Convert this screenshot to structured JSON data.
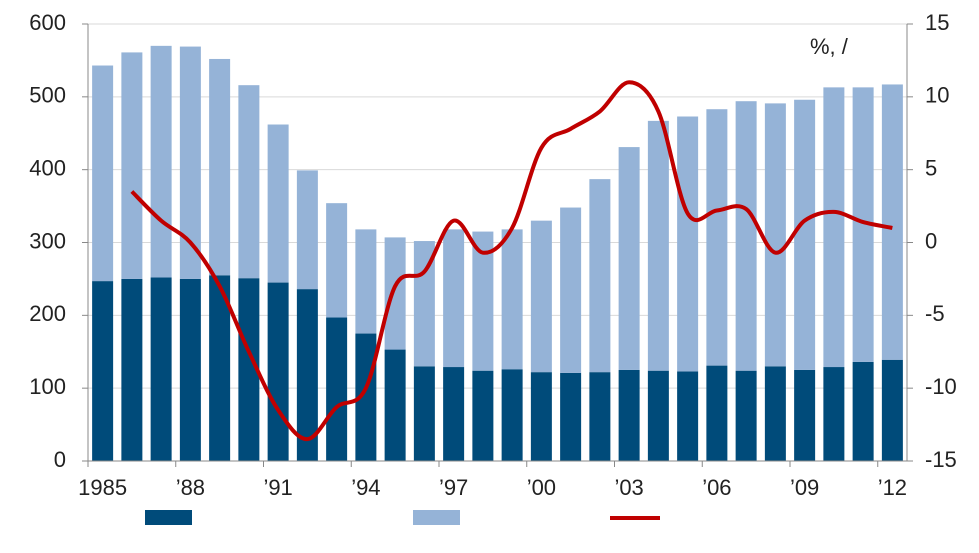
{
  "chart_data": {
    "type": "bar",
    "stacked": true,
    "annotation": "%,  /",
    "categories": [
      "1985",
      null,
      null,
      "’88",
      null,
      null,
      "’91",
      null,
      null,
      "’94",
      null,
      null,
      "’97",
      null,
      null,
      "’00",
      null,
      null,
      "’03",
      null,
      null,
      "’06",
      null,
      null,
      "’09",
      null,
      null,
      "’12"
    ],
    "series": [
      {
        "color": "#004b7a",
        "values": [
          247,
          250,
          252,
          250,
          255,
          251,
          245,
          236,
          197,
          175,
          153,
          130,
          129,
          124,
          126,
          122,
          121,
          122,
          125,
          124,
          123,
          131,
          124,
          130,
          125,
          129,
          136,
          139
        ]
      },
      {
        "color": "#95b3d7",
        "values": [
          296,
          311,
          318,
          319,
          297,
          265,
          217,
          163,
          157,
          143,
          154,
          172,
          189,
          191,
          192,
          208,
          227,
          265,
          306,
          343,
          350,
          352,
          370,
          361,
          371,
          384,
          377,
          378
        ]
      },
      {
        "type": "line",
        "axis": "y2",
        "color": "#c00000",
        "values": [
          null,
          3.5,
          1.5,
          0,
          -3,
          -7.5,
          -11.5,
          -13.5,
          -11.3,
          -10,
          -3,
          -2,
          1.5,
          -0.7,
          1,
          6.5,
          7.8,
          9,
          11,
          9,
          2,
          2.2,
          2.3,
          -0.7,
          1.5,
          2.1,
          1.4,
          1
        ]
      }
    ],
    "ylim": [
      0,
      600
    ],
    "yticks": [
      0,
      100,
      200,
      300,
      400,
      500,
      600
    ],
    "y2lim": [
      -15,
      15
    ],
    "y2ticks": [
      -15,
      -10,
      -5,
      0,
      5,
      10,
      15
    ],
    "grid": true,
    "legend": "bottom"
  }
}
